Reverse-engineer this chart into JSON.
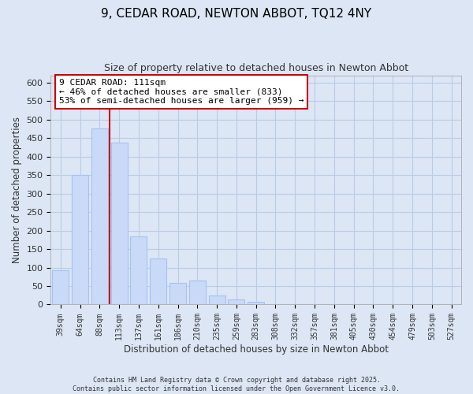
{
  "title": "9, CEDAR ROAD, NEWTON ABBOT, TQ12 4NY",
  "subtitle": "Size of property relative to detached houses in Newton Abbot",
  "xlabel": "Distribution of detached houses by size in Newton Abbot",
  "ylabel": "Number of detached properties",
  "bar_labels": [
    "39sqm",
    "64sqm",
    "88sqm",
    "113sqm",
    "137sqm",
    "161sqm",
    "186sqm",
    "210sqm",
    "235sqm",
    "259sqm",
    "283sqm",
    "308sqm",
    "332sqm",
    "357sqm",
    "381sqm",
    "405sqm",
    "430sqm",
    "454sqm",
    "479sqm",
    "503sqm",
    "527sqm"
  ],
  "bar_values": [
    93,
    350,
    476,
    437,
    184,
    125,
    59,
    65,
    24,
    14,
    8,
    0,
    0,
    0,
    0,
    0,
    2,
    0,
    0,
    0,
    1
  ],
  "bar_color": "#c9daf8",
  "bar_edge_color": "#a4c2f4",
  "vline_x": 2.5,
  "vline_color": "#cc0000",
  "annotation_title": "9 CEDAR ROAD: 111sqm",
  "annotation_line1": "← 46% of detached houses are smaller (833)",
  "annotation_line2": "53% of semi-detached houses are larger (959) →",
  "annotation_box_color": "#ffffff",
  "annotation_box_edge": "#cc0000",
  "ylim": [
    0,
    620
  ],
  "yticks": [
    0,
    50,
    100,
    150,
    200,
    250,
    300,
    350,
    400,
    450,
    500,
    550,
    600
  ],
  "footer_line1": "Contains HM Land Registry data © Crown copyright and database right 2025.",
  "footer_line2": "Contains public sector information licensed under the Open Government Licence v3.0.",
  "plot_bg_color": "#dce6f5",
  "fig_bg_color": "#dce6f5",
  "grid_color": "#b8cce4",
  "title_fontsize": 11,
  "subtitle_fontsize": 9
}
